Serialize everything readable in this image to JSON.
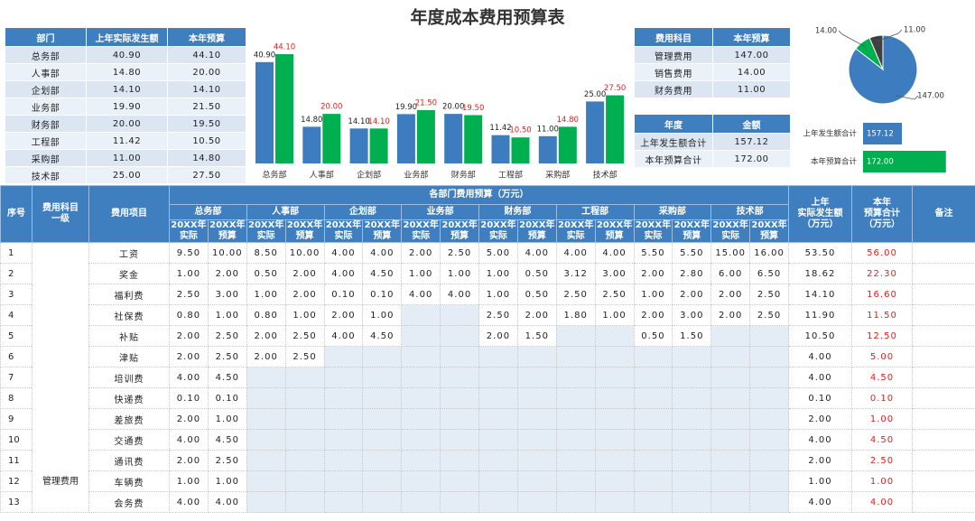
{
  "title": "年度成本费用预算表",
  "dept_table": {
    "header": [
      "部门",
      "上年实际发生额",
      "本年预算"
    ],
    "rows": [
      [
        "总务部",
        "40.90",
        "44.10"
      ],
      [
        "人事部",
        "14.80",
        "20.00"
      ],
      [
        "企划部",
        "14.10",
        "14.10"
      ],
      [
        "业务部",
        "19.90",
        "21.50"
      ],
      [
        "财务部",
        "20.00",
        "19.50"
      ],
      [
        "工程部",
        "11.42",
        "10.50"
      ],
      [
        "采购部",
        "11.00",
        "14.80"
      ],
      [
        "技术部",
        "25.00",
        "27.50"
      ]
    ]
  },
  "subject_table": {
    "header": [
      "费用科目",
      "本年预算"
    ],
    "rows": [
      [
        "管理费用",
        "147.00"
      ],
      [
        "销售费用",
        "14.00"
      ],
      [
        "财务费用",
        "11.00"
      ]
    ]
  },
  "total_table": {
    "header": [
      "年度",
      "金额"
    ],
    "rows": [
      [
        "上年发生额合计",
        "157.12"
      ],
      [
        "本年预算合计",
        "172.00"
      ]
    ]
  },
  "chart_data": [
    {
      "type": "bar",
      "categories": [
        "总务部",
        "人事部",
        "企划部",
        "业务部",
        "财务部",
        "工程部",
        "采购部",
        "技术部"
      ],
      "series": [
        {
          "color": "#3e7cc0",
          "label_color": "#222222",
          "values": [
            40.9,
            14.8,
            14.1,
            19.9,
            20,
            11.42,
            11,
            25
          ],
          "value_labels": [
            "40.90",
            "14.80",
            "14.10",
            "19.90",
            "20.00",
            "11.42",
            "11.00",
            "25.00"
          ]
        },
        {
          "color": "#00b050",
          "label_color": "#e02020",
          "values": [
            44.1,
            20,
            14.1,
            21.5,
            19.5,
            10.5,
            14.8,
            27.5
          ],
          "value_labels": [
            "44.10",
            "20.00",
            "14.10",
            "21.50",
            "19.50",
            "10.50",
            "14.80",
            "27.50"
          ]
        }
      ]
    },
    {
      "type": "pie",
      "values": [
        147,
        14,
        11
      ],
      "value_labels": [
        "147.00",
        "14.00",
        "11.00"
      ],
      "colors": [
        "#3e7cc0",
        "#00b050",
        "#404040"
      ]
    },
    {
      "type": "hbar",
      "categories": [
        "上年发生额合计",
        "本年预算合计"
      ],
      "values": [
        157.12,
        172
      ],
      "value_labels": [
        "157.12",
        "172.00"
      ],
      "colors": [
        "#3e7cc0",
        "#00b050"
      ],
      "xlim": [
        144,
        180
      ]
    }
  ],
  "main_table": {
    "header": {
      "seq": "序号",
      "level1": "费用科目\n一级",
      "item": "费用项目",
      "group": "各部门费用预算（万元）",
      "last_year": "上年\n实际发生额\n（万元）",
      "this_year": "本年\n预算合计\n（万元）",
      "note": "备注"
    },
    "departments": [
      "总务部",
      "人事部",
      "企划部",
      "业务部",
      "财务部",
      "工程部",
      "采购部",
      "技术部"
    ],
    "sub_headers": [
      "20XX年\n实际",
      "20XX年\n预算"
    ],
    "level1": "管理费用",
    "rows": [
      {
        "seq": 1,
        "item": "工资",
        "values": [
          "9.50",
          "10.00",
          "8.50",
          "10.00",
          "4.00",
          "4.00",
          "2.00",
          "2.50",
          "5.00",
          "4.00",
          "4.00",
          "4.00",
          "5.50",
          "5.50",
          "15.00",
          "16.00"
        ],
        "last_year": "53.50",
        "this_year": "56.00"
      },
      {
        "seq": 2,
        "item": "奖金",
        "values": [
          "1.00",
          "2.00",
          "0.50",
          "2.00",
          "4.00",
          "4.50",
          "1.00",
          "1.00",
          "1.00",
          "0.50",
          "3.12",
          "3.00",
          "2.00",
          "2.80",
          "6.00",
          "6.50"
        ],
        "last_year": "18.62",
        "this_year": "22.30"
      },
      {
        "seq": 3,
        "item": "福利费",
        "values": [
          "2.50",
          "3.00",
          "1.00",
          "2.00",
          "0.10",
          "0.10",
          "4.00",
          "4.00",
          "1.00",
          "0.50",
          "2.50",
          "2.50",
          "1.00",
          "2.00",
          "2.00",
          "2.50"
        ],
        "last_year": "14.10",
        "this_year": "16.60"
      },
      {
        "seq": 4,
        "item": "社保费",
        "values": [
          "0.80",
          "1.00",
          "0.80",
          "1.00",
          "2.00",
          "1.00",
          null,
          null,
          "2.50",
          "2.00",
          "1.80",
          "1.00",
          "2.00",
          "3.00",
          "2.00",
          "2.50"
        ],
        "last_year": "11.90",
        "this_year": "11.50"
      },
      {
        "seq": 5,
        "item": "补贴",
        "values": [
          "2.00",
          "2.50",
          "2.00",
          "2.50",
          "4.00",
          "4.50",
          null,
          null,
          "2.00",
          "1.50",
          null,
          null,
          "0.50",
          "1.50",
          null,
          null
        ],
        "last_year": "10.50",
        "this_year": "12.50"
      },
      {
        "seq": 6,
        "item": "津贴",
        "values": [
          "2.00",
          "2.50",
          "2.00",
          "2.50",
          null,
          null,
          null,
          null,
          null,
          null,
          null,
          null,
          null,
          null,
          null,
          null
        ],
        "last_year": "4.00",
        "this_year": "5.00"
      },
      {
        "seq": 7,
        "item": "培训费",
        "values": [
          "4.00",
          "4.50",
          null,
          null,
          null,
          null,
          null,
          null,
          null,
          null,
          null,
          null,
          null,
          null,
          null,
          null
        ],
        "last_year": "4.00",
        "this_year": "4.50"
      },
      {
        "seq": 8,
        "item": "快递费",
        "values": [
          "0.10",
          "0.10",
          null,
          null,
          null,
          null,
          null,
          null,
          null,
          null,
          null,
          null,
          null,
          null,
          null,
          null
        ],
        "last_year": "0.10",
        "this_year": "0.10"
      },
      {
        "seq": 9,
        "item": "差旅费",
        "values": [
          "2.00",
          "1.00",
          null,
          null,
          null,
          null,
          null,
          null,
          null,
          null,
          null,
          null,
          null,
          null,
          null,
          null
        ],
        "last_year": "2.00",
        "this_year": "1.00"
      },
      {
        "seq": 10,
        "item": "交通费",
        "values": [
          "4.00",
          "4.50",
          null,
          null,
          null,
          null,
          null,
          null,
          null,
          null,
          null,
          null,
          null,
          null,
          null,
          null
        ],
        "last_year": "4.00",
        "this_year": "4.50"
      },
      {
        "seq": 11,
        "item": "通讯费",
        "values": [
          "2.00",
          "2.50",
          null,
          null,
          null,
          null,
          null,
          null,
          null,
          null,
          null,
          null,
          null,
          null,
          null,
          null
        ],
        "last_year": "2.00",
        "this_year": "2.50"
      },
      {
        "seq": 12,
        "item": "车辆费",
        "values": [
          "1.00",
          "1.00",
          null,
          null,
          null,
          null,
          null,
          null,
          null,
          null,
          null,
          null,
          null,
          null,
          null,
          null
        ],
        "last_year": "1.00",
        "this_year": "1.00"
      },
      {
        "seq": 13,
        "item": "会务费",
        "values": [
          "4.00",
          "4.00",
          null,
          null,
          null,
          null,
          null,
          null,
          null,
          null,
          null,
          null,
          null,
          null,
          null,
          null
        ],
        "last_year": "4.00",
        "this_year": "4.00"
      }
    ]
  }
}
